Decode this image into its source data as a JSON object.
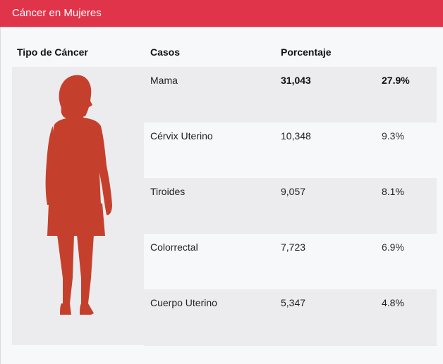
{
  "header": {
    "title": "Cáncer en Mujeres"
  },
  "table": {
    "columns": [
      "Tipo de Cáncer",
      "Casos",
      "Porcentaje"
    ],
    "rows": [
      {
        "type": "Mama",
        "cases": "31,043",
        "percent": "27.9%"
      },
      {
        "type": "Cérvix Uterino",
        "cases": "10,348",
        "percent": "9.3%"
      },
      {
        "type": "Tiroides",
        "cases": "9,057",
        "percent": "8.1%"
      },
      {
        "type": "Colorrectal",
        "cases": "7,723",
        "percent": "6.9%"
      },
      {
        "type": "Cuerpo Uterino",
        "cases": "5,347",
        "percent": "4.8%"
      }
    ]
  },
  "figure": {
    "icon": "woman-silhouette-icon",
    "color": "#c5402c"
  },
  "colors": {
    "header": "#e0344a",
    "row_shade": "#ececee",
    "background": "#f7f8fa"
  }
}
